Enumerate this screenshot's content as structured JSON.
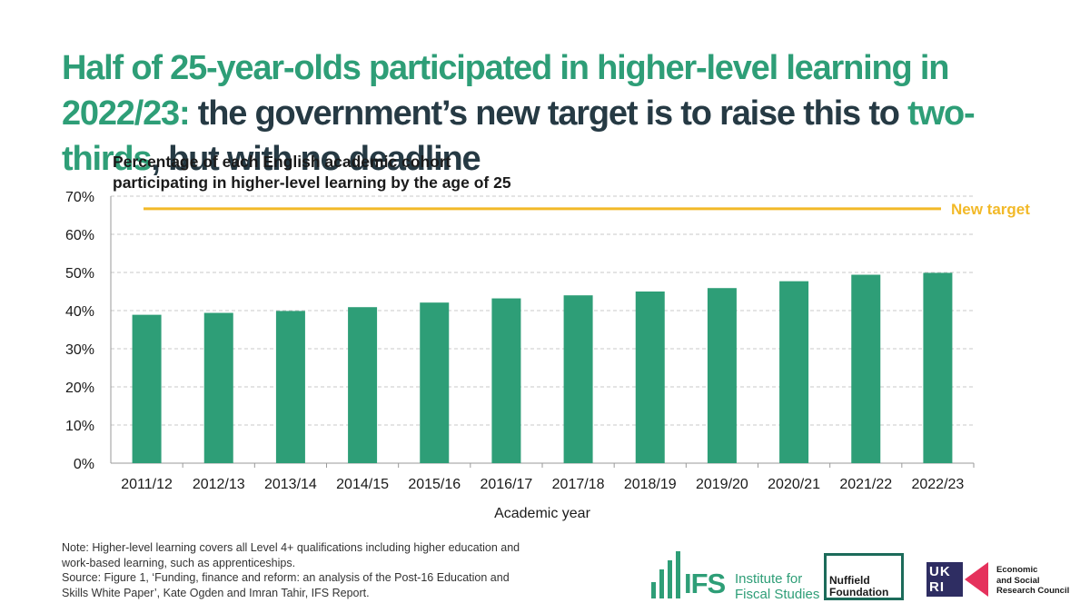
{
  "headline": {
    "part1": "Half of 25-year-olds participated in higher-level learning in 2022/23:",
    "part2": " the government’s new target is to raise this to ",
    "part3": "two-thirds",
    "part4": ", but with no deadline"
  },
  "chart_data": {
    "type": "bar",
    "title_line1": "Percentage of each English academic cohort",
    "title_line2": "participating in higher-level learning by the age of 25",
    "xlabel": "Academic year",
    "ylabel": "",
    "categories": [
      "2011/12",
      "2012/13",
      "2013/14",
      "2014/15",
      "2015/16",
      "2016/17",
      "2017/18",
      "2018/19",
      "2019/20",
      "2020/21",
      "2021/22",
      "2022/23"
    ],
    "values": [
      38.9,
      39.4,
      39.9,
      40.9,
      42.1,
      43.2,
      44.0,
      45.0,
      45.9,
      47.7,
      49.4,
      49.9
    ],
    "ylim": [
      0,
      70
    ],
    "yticks": [
      0,
      10,
      20,
      30,
      40,
      50,
      60,
      70
    ],
    "ytick_labels": [
      "0%",
      "10%",
      "20%",
      "30%",
      "40%",
      "50%",
      "60%",
      "70%"
    ],
    "grid": true,
    "target": {
      "value": 66.7,
      "label": "New target"
    },
    "colors": {
      "bar": "#2e9e77",
      "target": "#f2b928",
      "grid": "#c8c8c8",
      "axis": "#9a9a9a",
      "text": "#1a1a1a"
    }
  },
  "footnote": {
    "line1": "Note: Higher-level learning covers all Level 4+ qualifications including higher education and",
    "line2": "work-based learning, such as apprenticeships.",
    "line3": "Source: Figure 1, ‘Funding, finance and reform: an analysis of the Post-16 Education and",
    "line4": "Skills White Paper’, Kate Ogden and Imran Tahir, IFS Report."
  },
  "logos": {
    "ifs_short": "IFS",
    "ifs_line1": "Institute for",
    "ifs_line2": "Fiscal Studies",
    "nuffield_line1": "Nuffield",
    "nuffield_line2": "Foundation",
    "ukri_line1": "UK",
    "ukri_line2": "RI",
    "esrc_line1": "Economic",
    "esrc_line2": "and Social",
    "esrc_line3": "Research Council"
  }
}
